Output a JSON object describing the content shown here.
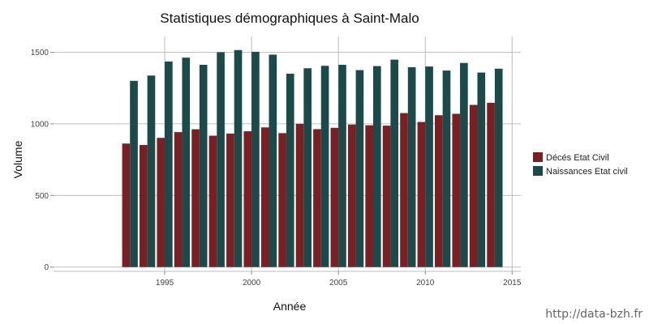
{
  "chart_data": {
    "type": "bar",
    "title": "Statistiques démographiques à Saint-Malo",
    "xlabel": "Année",
    "ylabel": "Volume",
    "x": [
      1993,
      1994,
      1995,
      1996,
      1997,
      1998,
      1999,
      2000,
      2001,
      2002,
      2003,
      2004,
      2005,
      2006,
      2007,
      2008,
      2009,
      2010,
      2011,
      2012,
      2013,
      2014
    ],
    "series": [
      {
        "name": "Décés Etat Civil",
        "color": "#7b1f23",
        "values": [
          862,
          852,
          902,
          942,
          962,
          917,
          932,
          948,
          975,
          935,
          1000,
          963,
          972,
          995,
          990,
          987,
          1075,
          1013,
          1060,
          1070,
          1132,
          1147
        ]
      },
      {
        "name": "Naissances Etat civil",
        "color": "#1a4a4a",
        "values": [
          1300,
          1337,
          1435,
          1462,
          1412,
          1500,
          1515,
          1503,
          1483,
          1350,
          1388,
          1405,
          1412,
          1375,
          1403,
          1448,
          1395,
          1400,
          1372,
          1425,
          1358,
          1385
        ]
      }
    ],
    "xlim": [
      1988.6,
      2015.5
    ],
    "ylim": [
      -30,
      1610
    ],
    "x_ticks": [
      1995,
      2000,
      2005,
      2010,
      2015
    ],
    "y_ticks": [
      0,
      500,
      1000,
      1500
    ],
    "grid": true,
    "legend_position": "right"
  },
  "watermark": "http://data-bzh.fr"
}
